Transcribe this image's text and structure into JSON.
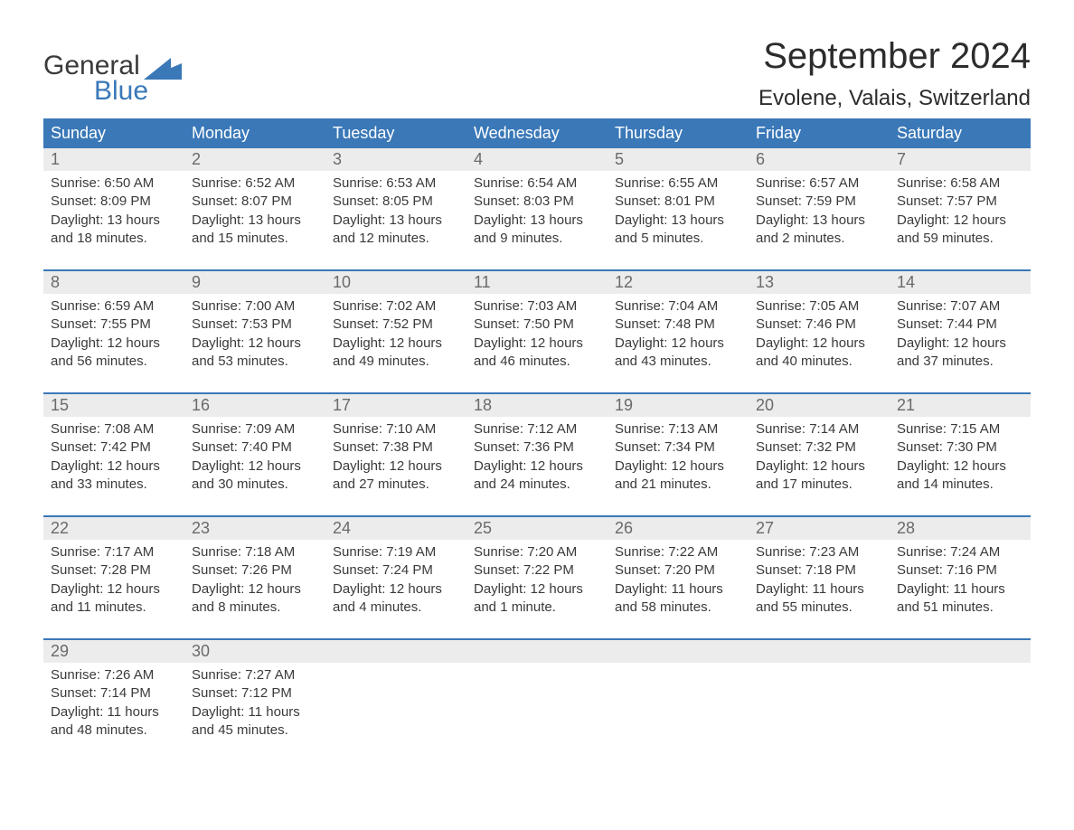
{
  "logo": {
    "word1": "General",
    "word2": "Blue"
  },
  "title": "September 2024",
  "location": "Evolene, Valais, Switzerland",
  "colors": {
    "brand_blue": "#3a78b8",
    "header_bg": "#3a78b8",
    "header_text": "#ffffff",
    "daynum_bg": "#ececec",
    "daynum_text": "#6a6a6a",
    "body_text": "#3a3a3a",
    "background": "#ffffff"
  },
  "day_names": [
    "Sunday",
    "Monday",
    "Tuesday",
    "Wednesday",
    "Thursday",
    "Friday",
    "Saturday"
  ],
  "weeks": [
    [
      {
        "n": "1",
        "sunrise": "6:50 AM",
        "sunset": "8:09 PM",
        "dl1": "Daylight: 13 hours",
        "dl2": "and 18 minutes."
      },
      {
        "n": "2",
        "sunrise": "6:52 AM",
        "sunset": "8:07 PM",
        "dl1": "Daylight: 13 hours",
        "dl2": "and 15 minutes."
      },
      {
        "n": "3",
        "sunrise": "6:53 AM",
        "sunset": "8:05 PM",
        "dl1": "Daylight: 13 hours",
        "dl2": "and 12 minutes."
      },
      {
        "n": "4",
        "sunrise": "6:54 AM",
        "sunset": "8:03 PM",
        "dl1": "Daylight: 13 hours",
        "dl2": "and 9 minutes."
      },
      {
        "n": "5",
        "sunrise": "6:55 AM",
        "sunset": "8:01 PM",
        "dl1": "Daylight: 13 hours",
        "dl2": "and 5 minutes."
      },
      {
        "n": "6",
        "sunrise": "6:57 AM",
        "sunset": "7:59 PM",
        "dl1": "Daylight: 13 hours",
        "dl2": "and 2 minutes."
      },
      {
        "n": "7",
        "sunrise": "6:58 AM",
        "sunset": "7:57 PM",
        "dl1": "Daylight: 12 hours",
        "dl2": "and 59 minutes."
      }
    ],
    [
      {
        "n": "8",
        "sunrise": "6:59 AM",
        "sunset": "7:55 PM",
        "dl1": "Daylight: 12 hours",
        "dl2": "and 56 minutes."
      },
      {
        "n": "9",
        "sunrise": "7:00 AM",
        "sunset": "7:53 PM",
        "dl1": "Daylight: 12 hours",
        "dl2": "and 53 minutes."
      },
      {
        "n": "10",
        "sunrise": "7:02 AM",
        "sunset": "7:52 PM",
        "dl1": "Daylight: 12 hours",
        "dl2": "and 49 minutes."
      },
      {
        "n": "11",
        "sunrise": "7:03 AM",
        "sunset": "7:50 PM",
        "dl1": "Daylight: 12 hours",
        "dl2": "and 46 minutes."
      },
      {
        "n": "12",
        "sunrise": "7:04 AM",
        "sunset": "7:48 PM",
        "dl1": "Daylight: 12 hours",
        "dl2": "and 43 minutes."
      },
      {
        "n": "13",
        "sunrise": "7:05 AM",
        "sunset": "7:46 PM",
        "dl1": "Daylight: 12 hours",
        "dl2": "and 40 minutes."
      },
      {
        "n": "14",
        "sunrise": "7:07 AM",
        "sunset": "7:44 PM",
        "dl1": "Daylight: 12 hours",
        "dl2": "and 37 minutes."
      }
    ],
    [
      {
        "n": "15",
        "sunrise": "7:08 AM",
        "sunset": "7:42 PM",
        "dl1": "Daylight: 12 hours",
        "dl2": "and 33 minutes."
      },
      {
        "n": "16",
        "sunrise": "7:09 AM",
        "sunset": "7:40 PM",
        "dl1": "Daylight: 12 hours",
        "dl2": "and 30 minutes."
      },
      {
        "n": "17",
        "sunrise": "7:10 AM",
        "sunset": "7:38 PM",
        "dl1": "Daylight: 12 hours",
        "dl2": "and 27 minutes."
      },
      {
        "n": "18",
        "sunrise": "7:12 AM",
        "sunset": "7:36 PM",
        "dl1": "Daylight: 12 hours",
        "dl2": "and 24 minutes."
      },
      {
        "n": "19",
        "sunrise": "7:13 AM",
        "sunset": "7:34 PM",
        "dl1": "Daylight: 12 hours",
        "dl2": "and 21 minutes."
      },
      {
        "n": "20",
        "sunrise": "7:14 AM",
        "sunset": "7:32 PM",
        "dl1": "Daylight: 12 hours",
        "dl2": "and 17 minutes."
      },
      {
        "n": "21",
        "sunrise": "7:15 AM",
        "sunset": "7:30 PM",
        "dl1": "Daylight: 12 hours",
        "dl2": "and 14 minutes."
      }
    ],
    [
      {
        "n": "22",
        "sunrise": "7:17 AM",
        "sunset": "7:28 PM",
        "dl1": "Daylight: 12 hours",
        "dl2": "and 11 minutes."
      },
      {
        "n": "23",
        "sunrise": "7:18 AM",
        "sunset": "7:26 PM",
        "dl1": "Daylight: 12 hours",
        "dl2": "and 8 minutes."
      },
      {
        "n": "24",
        "sunrise": "7:19 AM",
        "sunset": "7:24 PM",
        "dl1": "Daylight: 12 hours",
        "dl2": "and 4 minutes."
      },
      {
        "n": "25",
        "sunrise": "7:20 AM",
        "sunset": "7:22 PM",
        "dl1": "Daylight: 12 hours",
        "dl2": "and 1 minute."
      },
      {
        "n": "26",
        "sunrise": "7:22 AM",
        "sunset": "7:20 PM",
        "dl1": "Daylight: 11 hours",
        "dl2": "and 58 minutes."
      },
      {
        "n": "27",
        "sunrise": "7:23 AM",
        "sunset": "7:18 PM",
        "dl1": "Daylight: 11 hours",
        "dl2": "and 55 minutes."
      },
      {
        "n": "28",
        "sunrise": "7:24 AM",
        "sunset": "7:16 PM",
        "dl1": "Daylight: 11 hours",
        "dl2": "and 51 minutes."
      }
    ],
    [
      {
        "n": "29",
        "sunrise": "7:26 AM",
        "sunset": "7:14 PM",
        "dl1": "Daylight: 11 hours",
        "dl2": "and 48 minutes."
      },
      {
        "n": "30",
        "sunrise": "7:27 AM",
        "sunset": "7:12 PM",
        "dl1": "Daylight: 11 hours",
        "dl2": "and 45 minutes."
      },
      null,
      null,
      null,
      null,
      null
    ]
  ],
  "labels": {
    "sunrise": "Sunrise:",
    "sunset": "Sunset:"
  }
}
